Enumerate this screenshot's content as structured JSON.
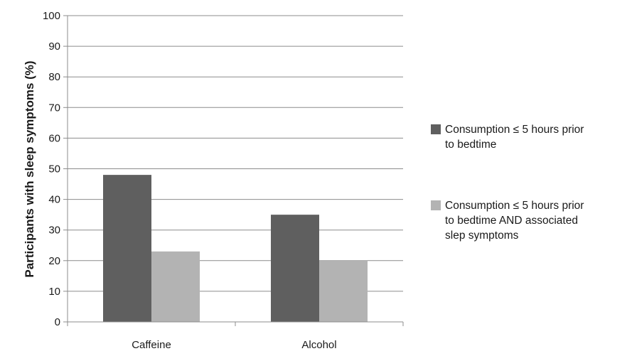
{
  "chart_data": {
    "type": "bar",
    "title": "",
    "xlabel": "",
    "ylabel": "Participants with sleep symptoms (%)",
    "categories": [
      "Caffeine",
      "Alcohol"
    ],
    "series": [
      {
        "name": "Consumption ≤ 5 hours prior to bedtime",
        "values": [
          48,
          35
        ],
        "color": "#5f5f5f"
      },
      {
        "name": "Consumption ≤ 5 hours prior to bedtime AND associated slep symptoms",
        "values": [
          23,
          20
        ],
        "color": "#b3b3b3"
      }
    ],
    "ylim": [
      0,
      100
    ],
    "yticks": [
      "0",
      "10",
      "20",
      "30",
      "40",
      "50",
      "60",
      "70",
      "80",
      "90",
      "100"
    ],
    "grid": true,
    "legend_position": "right",
    "legend_lines": [
      [
        "Consumption ≤ 5 hours prior",
        "to bedtime"
      ],
      [
        "Consumption ≤ 5 hours prior",
        "to bedtime AND associated",
        "slep symptoms"
      ]
    ]
  }
}
